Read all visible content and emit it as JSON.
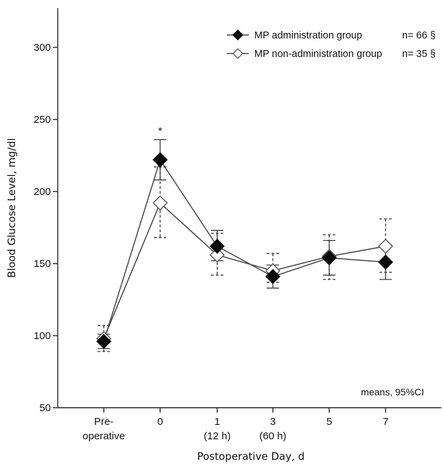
{
  "chart_data": {
    "type": "line",
    "ylabel": "Blood Glucose Level, mg/dl",
    "xlabel": "Postoperative Day, d",
    "ylim": [
      50,
      300
    ],
    "yticks": [
      "50",
      "100",
      "150",
      "200",
      "250",
      "300"
    ],
    "categories": [
      {
        "line1": "Pre-",
        "line2": "operative"
      },
      {
        "line1": "0",
        "line2": ""
      },
      {
        "line1": "1",
        "line2": "(12 h)"
      },
      {
        "line1": "3",
        "line2": "(60 h)"
      },
      {
        "line1": "5",
        "line2": ""
      },
      {
        "line1": "7",
        "line2": ""
      }
    ],
    "series": [
      {
        "name": "MP administration group",
        "n_label": "n= 66 §",
        "marker": "filled-diamond",
        "errorbar_style": "solid",
        "values": [
          96,
          222,
          162,
          141,
          154,
          151
        ],
        "ci_low": [
          91,
          208,
          152,
          133,
          142,
          139
        ],
        "ci_high": [
          101,
          236,
          173,
          149,
          166,
          163
        ]
      },
      {
        "name": "MP non-administration group",
        "n_label": "n= 35 §",
        "marker": "open-diamond",
        "errorbar_style": "dashed",
        "values": [
          98,
          192,
          156,
          145,
          155,
          162
        ],
        "ci_low": [
          89,
          168,
          142,
          137,
          139,
          144
        ],
        "ci_high": [
          107,
          217,
          171,
          157,
          170,
          181
        ]
      }
    ],
    "annotations": [
      {
        "text": "*",
        "category_index": 1
      }
    ],
    "note": "means, 95%CI",
    "legend_position": "top-right",
    "grid": false
  }
}
